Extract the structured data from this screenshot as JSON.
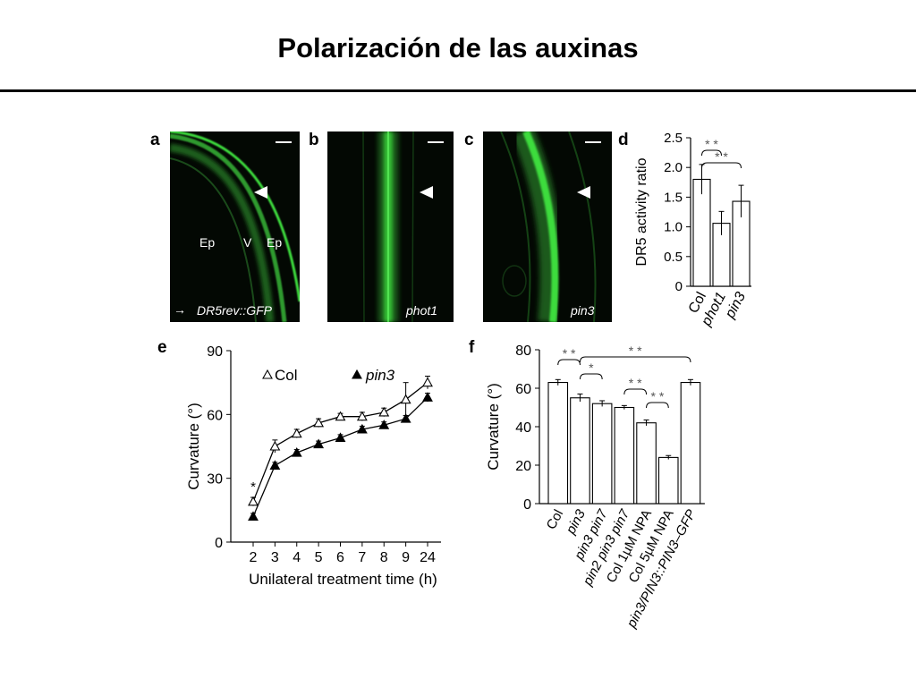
{
  "slide": {
    "title": "Polarización de las auxinas"
  },
  "panels": {
    "a": {
      "letter": "a",
      "labels": [
        "Ep",
        "V",
        "Ep"
      ],
      "arrow": "→",
      "marker": "DR5rev::GFP",
      "fluorescence_color": "#3ddc3d"
    },
    "b": {
      "letter": "b",
      "marker": "phot1"
    },
    "c": {
      "letter": "c",
      "marker": "pin3"
    }
  },
  "chart_data": [
    {
      "panel": "d",
      "type": "bar",
      "categories": [
        "Col",
        "phot1",
        "pin3"
      ],
      "values": [
        1.8,
        1.06,
        1.43
      ],
      "errors": [
        0.25,
        0.2,
        0.27
      ],
      "ylabel": "DR5 activity ratio",
      "ylim": [
        0,
        2.5
      ],
      "yticks": [
        "0",
        "0.5",
        "1.0",
        "1.5",
        "2.0",
        "2.5"
      ],
      "significance": [
        {
          "from": "Col",
          "to": "phot1",
          "label": "* *"
        },
        {
          "from": "Col",
          "to": "pin3",
          "label": "* *"
        }
      ]
    },
    {
      "panel": "e",
      "type": "line",
      "x": [
        "2",
        "3",
        "4",
        "5",
        "6",
        "7",
        "8",
        "9",
        "24"
      ],
      "series": [
        {
          "name": "Col",
          "marker": "open-triangle",
          "values": [
            19,
            45,
            51,
            56,
            59,
            59,
            61,
            67,
            75
          ],
          "errors": [
            2,
            3,
            2,
            2,
            1.5,
            2,
            2,
            8,
            3
          ]
        },
        {
          "name": "pin3",
          "marker": "filled-triangle",
          "values": [
            12,
            36,
            42,
            46,
            49,
            53,
            55,
            58,
            68
          ],
          "errors": [
            1.5,
            1.5,
            1.5,
            1.5,
            1.5,
            1.5,
            1.5,
            1.5,
            2
          ]
        }
      ],
      "annotation": "*",
      "legend": {
        "items": [
          "Col",
          "pin3"
        ]
      },
      "xlabel": "Unilateral treatment time (h)",
      "ylabel": "Curvature (°)",
      "ylim": [
        0,
        90
      ],
      "yticks": [
        "0",
        "30",
        "60",
        "90"
      ]
    },
    {
      "panel": "f",
      "type": "bar",
      "categories": [
        "Col",
        "pin3",
        "pin3 pin7",
        "pin2 pin3 pin7",
        "Col 1µM NPA",
        "Col 5µM NPA",
        "pin3/PIN3::PIN3–GFP"
      ],
      "values": [
        63,
        55,
        52,
        50,
        42,
        24,
        63
      ],
      "errors": [
        1.5,
        2,
        1.5,
        1,
        1.5,
        1,
        1.5
      ],
      "ylabel": "Curvature (°)",
      "ylim": [
        0,
        80
      ],
      "yticks": [
        "0",
        "20",
        "40",
        "60",
        "80"
      ],
      "significance": [
        {
          "from": "Col",
          "to": "pin3",
          "label": "* *"
        },
        {
          "from": "pin3",
          "to": "pin3/PIN3::PIN3–GFP",
          "label": "* *"
        },
        {
          "from": "pin3",
          "to": "pin3 pin7",
          "label": "*"
        },
        {
          "from": "pin2 pin3 pin7",
          "to": "Col 1µM NPA",
          "label": "* *"
        },
        {
          "from": "Col 1µM NPA",
          "to": "Col 5µM NPA",
          "label": "* *"
        }
      ]
    }
  ]
}
